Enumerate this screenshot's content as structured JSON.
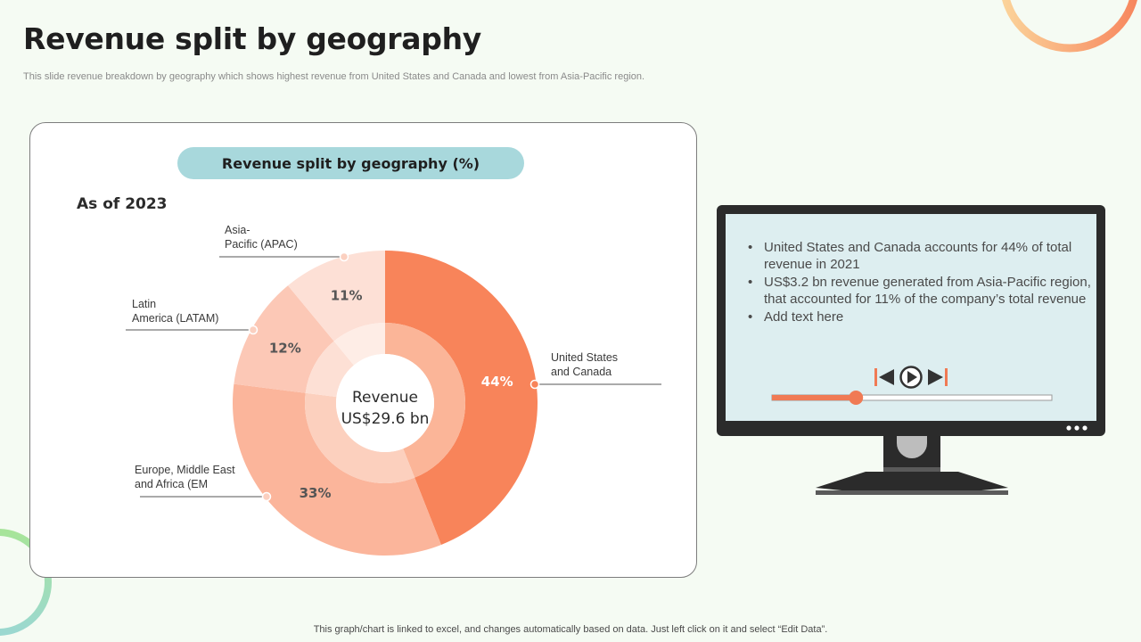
{
  "page": {
    "title": "Revenue split by geography",
    "subtitle": "This slide revenue breakdown by geography which shows highest revenue from United States and Canada and lowest from Asia-Pacific region.",
    "footer": "This graph/chart is linked to excel,  and changes automatically based on data. Just left click on it and select “Edit Data”."
  },
  "chart_card": {
    "header": "Revenue split by geography (%)",
    "as_of": "As of 2023",
    "center_label_line1": "Revenue",
    "center_label_line2": "US$29.6 bn"
  },
  "chart_data": {
    "type": "pie",
    "title": "Revenue split by geography (%)",
    "categories": [
      "United States and Canada",
      "Europe, Middle East and Africa (EM",
      "Latin America (LATAM)",
      "Asia-Pacific (APAC)"
    ],
    "values": [
      44,
      33,
      12,
      11
    ],
    "data_labels": [
      "44%",
      "33%",
      "12%",
      "11%"
    ],
    "colors": [
      "#f8845a",
      "#fbb59b",
      "#fcc8b6",
      "#fde0d6"
    ],
    "inner_colors": [
      "#fbb598",
      "#fcd0be",
      "#fde0d5",
      "#feede6"
    ],
    "category_labels": [
      "United States\nand Canada",
      "Europe, Middle East\nand Africa (EM",
      "Latin\nAmerica (LATAM)",
      "Asia-\nPacific (APAC)"
    ]
  },
  "monitor": {
    "bullets": [
      "United States and Canada accounts for 44% of total revenue in 2021",
      "US$3.2 bn revenue generated from Asia-Pacific region, that accounted for 11% of the company’s total revenue",
      "Add text here"
    ],
    "progress_fraction": 0.3,
    "screen_color": "#ddeef0",
    "accent": "#f07a54"
  }
}
